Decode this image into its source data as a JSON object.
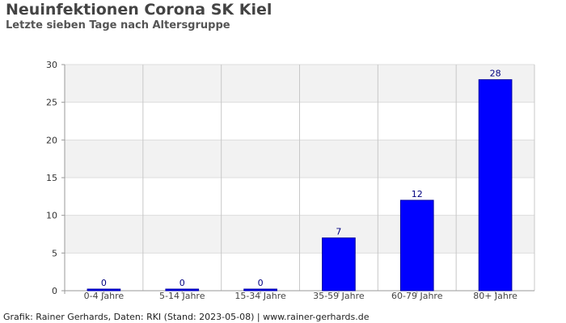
{
  "chart_data": {
    "type": "bar",
    "title": "Neuinfektionen Corona SK Kiel",
    "subtitle": "Letzte sieben Tage nach Altersgruppe",
    "categories": [
      "0-4 Jahre",
      "5-14 Jahre",
      "15-34 Jahre",
      "35-59 Jahre",
      "60-79 Jahre",
      "80+ Jahre"
    ],
    "values": [
      0,
      0,
      0,
      7,
      12,
      28
    ],
    "xlabel": "",
    "ylabel": "",
    "ylim": [
      0,
      30
    ],
    "yticks": [
      0,
      5,
      10,
      15,
      20,
      25,
      30
    ],
    "grid": true,
    "bar_color": "#0000ff",
    "label_color": "#000080"
  },
  "footer": "Grafik: Rainer Gerhards, Daten: RKI (Stand: 2023-05-08) | www.rainer-gerhards.de"
}
